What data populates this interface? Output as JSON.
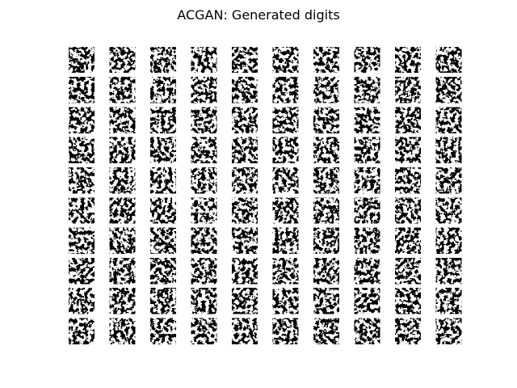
{
  "title": "ACGAN: Generated digits"
}
